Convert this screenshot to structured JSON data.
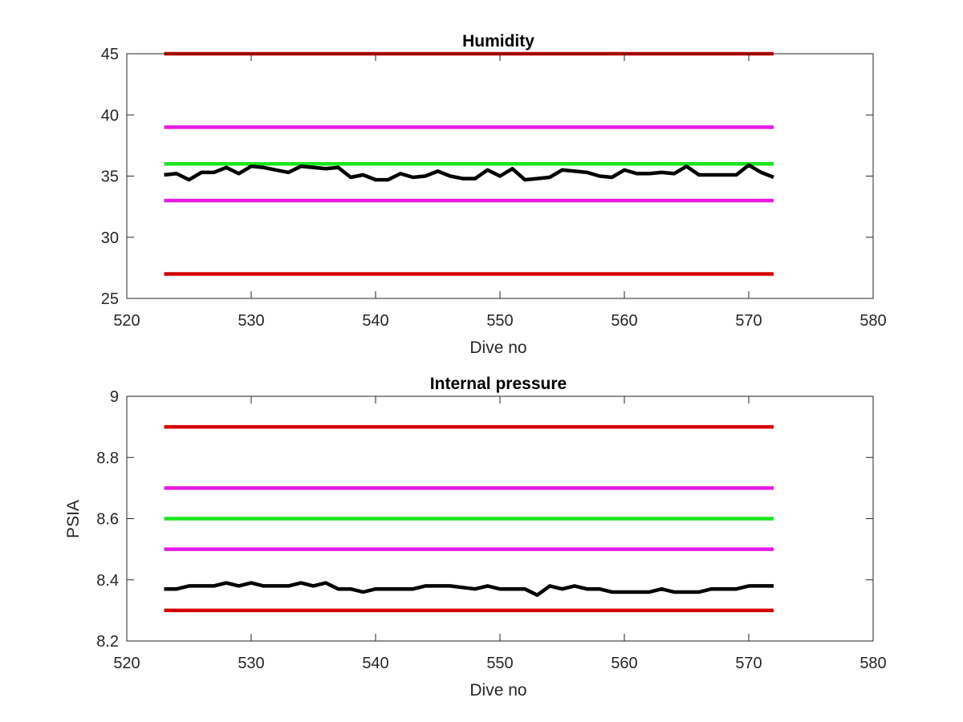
{
  "chart_data": [
    {
      "type": "line",
      "title": "Humidity",
      "xlabel": "Dive no",
      "ylabel": "",
      "xlim": [
        520,
        580
      ],
      "ylim": [
        25,
        45
      ],
      "xticks": [
        "520",
        "530",
        "540",
        "550",
        "560",
        "570",
        "580"
      ],
      "yticks": [
        "25",
        "30",
        "35",
        "40",
        "45"
      ],
      "grid": false,
      "legend": "none",
      "thresholds": [
        {
          "value": 45,
          "x_range": [
            523,
            572
          ],
          "color": "#d40000"
        },
        {
          "value": 39,
          "x_range": [
            523,
            572
          ],
          "color": "#e619e6"
        },
        {
          "value": 36,
          "x_range": [
            523,
            572
          ],
          "color": "#1be61b"
        },
        {
          "value": 33,
          "x_range": [
            523,
            572
          ],
          "color": "#e619e6"
        },
        {
          "value": 27,
          "x_range": [
            523,
            572
          ],
          "color": "#d40000"
        }
      ],
      "series": [
        {
          "color": "#000000",
          "x": [
            523,
            524,
            525,
            526,
            527,
            528,
            529,
            530,
            531,
            532,
            533,
            534,
            535,
            536,
            537,
            538,
            539,
            540,
            541,
            542,
            543,
            544,
            545,
            546,
            547,
            548,
            549,
            550,
            551,
            552,
            553,
            554,
            555,
            556,
            557,
            558,
            559,
            560,
            561,
            562,
            563,
            564,
            565,
            566,
            567,
            568,
            569,
            570,
            571,
            572
          ],
          "y": [
            35.1,
            35.2,
            34.7,
            35.3,
            35.3,
            35.7,
            35.2,
            35.8,
            35.7,
            35.5,
            35.3,
            35.8,
            35.7,
            35.6,
            35.7,
            34.9,
            35.1,
            34.7,
            34.7,
            35.2,
            34.9,
            35.0,
            35.4,
            35.0,
            34.8,
            34.8,
            35.5,
            35.0,
            35.6,
            34.7,
            34.8,
            34.9,
            35.5,
            35.4,
            35.3,
            35.0,
            34.9,
            35.5,
            35.2,
            35.2,
            35.3,
            35.2,
            35.8,
            35.1,
            35.1,
            35.1,
            35.1,
            35.9,
            35.3,
            34.9
          ]
        }
      ]
    },
    {
      "type": "line",
      "title": "Internal pressure",
      "xlabel": "Dive no",
      "ylabel": "PSIA",
      "xlim": [
        520,
        580
      ],
      "ylim": [
        8.2,
        9.0
      ],
      "xticks": [
        "520",
        "530",
        "540",
        "550",
        "560",
        "570",
        "580"
      ],
      "yticks": [
        "8.2",
        "8.4",
        "8.6",
        "8.8",
        "9"
      ],
      "grid": false,
      "legend": "none",
      "thresholds": [
        {
          "value": 8.9,
          "x_range": [
            523,
            572
          ],
          "color": "#d40000"
        },
        {
          "value": 8.7,
          "x_range": [
            523,
            572
          ],
          "color": "#e619e6"
        },
        {
          "value": 8.6,
          "x_range": [
            523,
            572
          ],
          "color": "#1be61b"
        },
        {
          "value": 8.5,
          "x_range": [
            523,
            572
          ],
          "color": "#e619e6"
        },
        {
          "value": 8.3,
          "x_range": [
            523,
            572
          ],
          "color": "#d40000"
        }
      ],
      "series": [
        {
          "color": "#000000",
          "x": [
            523,
            524,
            525,
            526,
            527,
            528,
            529,
            530,
            531,
            532,
            533,
            534,
            535,
            536,
            537,
            538,
            539,
            540,
            541,
            542,
            543,
            544,
            545,
            546,
            547,
            548,
            549,
            550,
            551,
            552,
            553,
            554,
            555,
            556,
            557,
            558,
            559,
            560,
            561,
            562,
            563,
            564,
            565,
            566,
            567,
            568,
            569,
            570,
            571,
            572
          ],
          "y": [
            8.37,
            8.37,
            8.38,
            8.38,
            8.38,
            8.39,
            8.38,
            8.39,
            8.38,
            8.38,
            8.38,
            8.39,
            8.38,
            8.39,
            8.37,
            8.37,
            8.36,
            8.37,
            8.37,
            8.37,
            8.37,
            8.38,
            8.38,
            8.38,
            8.375,
            8.37,
            8.38,
            8.37,
            8.37,
            8.37,
            8.35,
            8.38,
            8.37,
            8.38,
            8.37,
            8.37,
            8.36,
            8.36,
            8.36,
            8.36,
            8.37,
            8.36,
            8.36,
            8.36,
            8.37,
            8.37,
            8.37,
            8.38,
            8.38,
            8.38
          ]
        }
      ]
    }
  ]
}
